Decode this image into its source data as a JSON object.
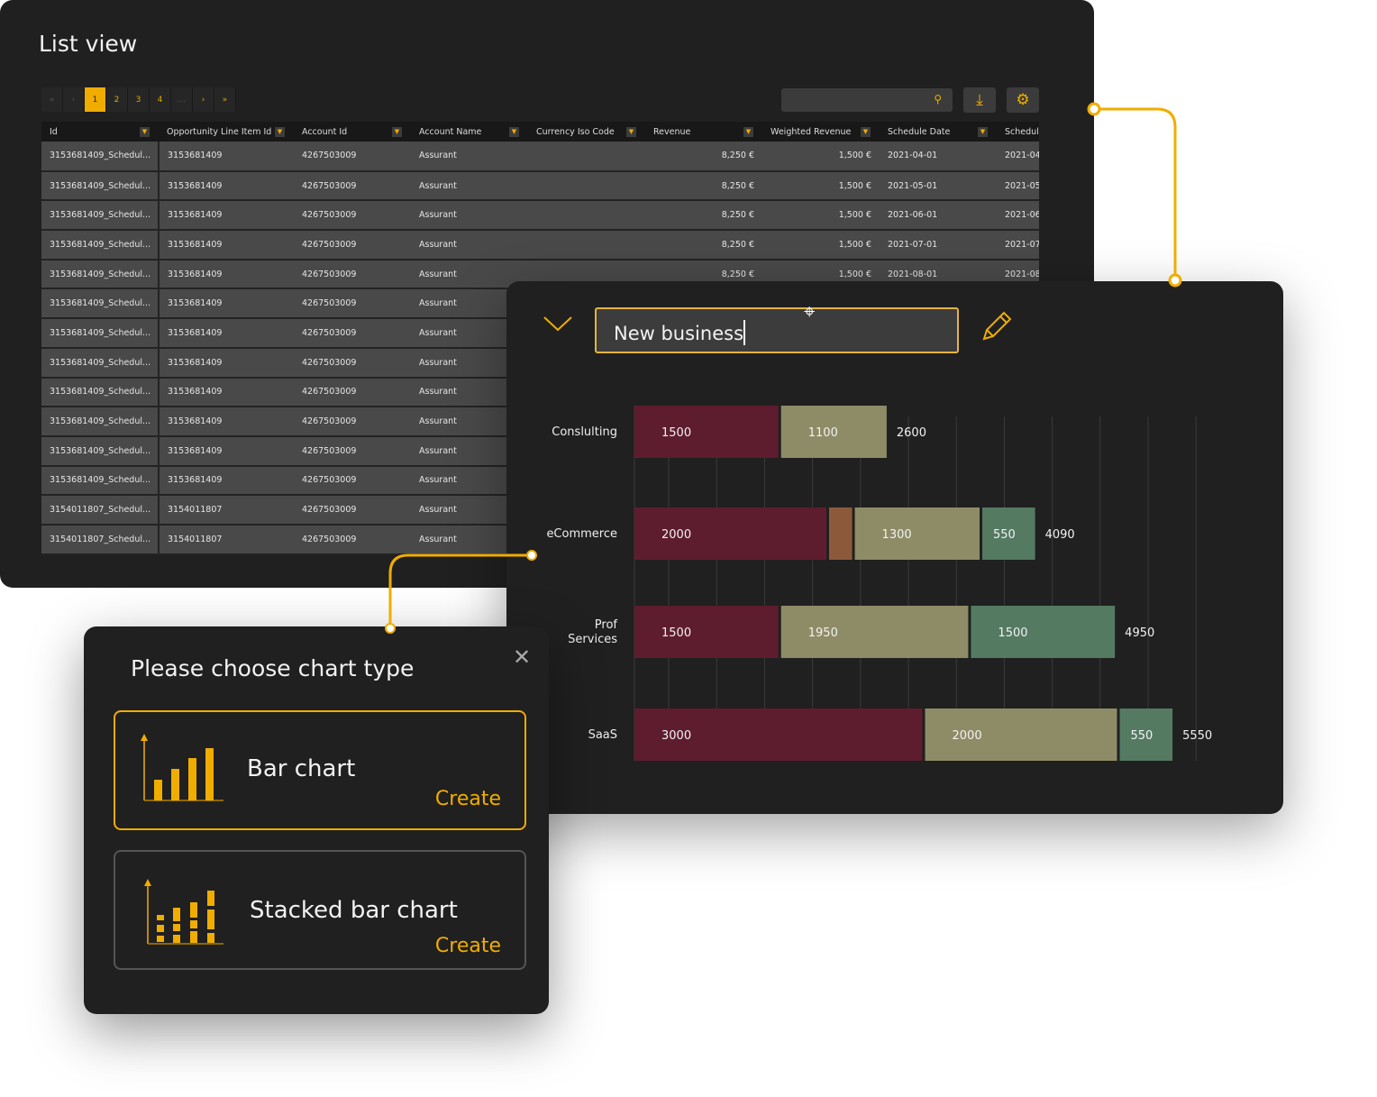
{
  "list_view": {
    "title": "List view",
    "pagination": {
      "first": "«",
      "prev": "‹",
      "pages": [
        "1",
        "2",
        "3",
        "4"
      ],
      "ellipsis": "…",
      "next": "›",
      "last": "»",
      "current": "1"
    },
    "search": {
      "placeholder": "",
      "icon": "search-icon"
    },
    "toolbar": {
      "download_icon": "download-icon",
      "settings_icon": "gear-icon"
    },
    "columns": [
      "Id",
      "Opportunity Line Item Id",
      "Account Id",
      "Account Name",
      "Currency Iso Code",
      "Revenue",
      "Weighted Revenue",
      "Schedule Date",
      "Schedule"
    ],
    "rows": [
      [
        "3153681409_Schedul...",
        "3153681409",
        "4267503009",
        "Assurant",
        "",
        "8,250 €",
        "1,500 €",
        "2021-04-01",
        "2021-04"
      ],
      [
        "3153681409_Schedul...",
        "3153681409",
        "4267503009",
        "Assurant",
        "",
        "8,250 €",
        "1,500 €",
        "2021-05-01",
        "2021-05"
      ],
      [
        "3153681409_Schedul...",
        "3153681409",
        "4267503009",
        "Assurant",
        "",
        "8,250 €",
        "1,500 €",
        "2021-06-01",
        "2021-06"
      ],
      [
        "3153681409_Schedul...",
        "3153681409",
        "4267503009",
        "Assurant",
        "",
        "8,250 €",
        "1,500 €",
        "2021-07-01",
        "2021-07"
      ],
      [
        "3153681409_Schedul...",
        "3153681409",
        "4267503009",
        "Assurant",
        "",
        "8,250 €",
        "1,500 €",
        "2021-08-01",
        "2021-08"
      ],
      [
        "3153681409_Schedul...",
        "3153681409",
        "4267503009",
        "Assurant",
        "",
        "",
        "",
        "",
        ""
      ],
      [
        "3153681409_Schedul...",
        "3153681409",
        "4267503009",
        "Assurant",
        "",
        "",
        "",
        "",
        ""
      ],
      [
        "3153681409_Schedul...",
        "3153681409",
        "4267503009",
        "Assurant",
        "",
        "",
        "",
        "",
        ""
      ],
      [
        "3153681409_Schedul...",
        "3153681409",
        "4267503009",
        "Assurant",
        "",
        "",
        "",
        "",
        ""
      ],
      [
        "3153681409_Schedul...",
        "3153681409",
        "4267503009",
        "Assurant",
        "",
        "",
        "",
        "",
        ""
      ],
      [
        "3153681409_Schedul...",
        "3153681409",
        "4267503009",
        "Assurant",
        "",
        "",
        "",
        "",
        ""
      ],
      [
        "3153681409_Schedul...",
        "3153681409",
        "4267503009",
        "Assurant",
        "",
        "",
        "",
        "",
        ""
      ],
      [
        "3154011807_Schedul...",
        "3154011807",
        "4267503009",
        "Assurant",
        "",
        "",
        "",
        "",
        ""
      ],
      [
        "3154011807_Schedul...",
        "3154011807",
        "4267503009",
        "Assurant",
        "",
        "",
        "",
        "",
        ""
      ]
    ]
  },
  "chart_panel": {
    "title_input": {
      "value": "New business"
    },
    "collapse_icon": "chevron-down-icon",
    "edit_icon": "pencil-icon"
  },
  "chart_data": {
    "type": "bar",
    "orientation": "horizontal",
    "stacked": true,
    "categories": [
      "Conslulting",
      "eCommerce",
      "Prof Services",
      "SaaS"
    ],
    "series": [
      {
        "color": "#5e1c2f",
        "values": [
          1500,
          2000,
          1500,
          3000
        ]
      },
      {
        "color": "#8c5a3a",
        "values": [
          0,
          240,
          0,
          0
        ]
      },
      {
        "color": "#8e8c66",
        "values": [
          1100,
          1300,
          1950,
          2000
        ]
      },
      {
        "color": "#547a62",
        "values": [
          0,
          550,
          1500,
          550
        ]
      }
    ],
    "segment_labels": [
      [
        "1500",
        "1100"
      ],
      [
        "2000",
        "",
        "1300",
        "550"
      ],
      [
        "1500",
        "1950",
        "1500"
      ],
      [
        "3000",
        "2000",
        "550"
      ]
    ],
    "totals": [
      "2600",
      "4090",
      "4950",
      "5550"
    ],
    "grid": true,
    "legend": "none"
  },
  "dialog": {
    "title": "Please choose chart type",
    "close_icon": "close-icon",
    "options": [
      {
        "label": "Bar chart",
        "action": "Create",
        "icon": "bar-chart-icon",
        "selected": true
      },
      {
        "label": "Stacked bar chart",
        "action": "Create",
        "icon": "stacked-bar-chart-icon",
        "selected": false
      }
    ]
  },
  "colors": {
    "accent": "#f0ad00",
    "panel": "#202020",
    "row": "#484948"
  }
}
